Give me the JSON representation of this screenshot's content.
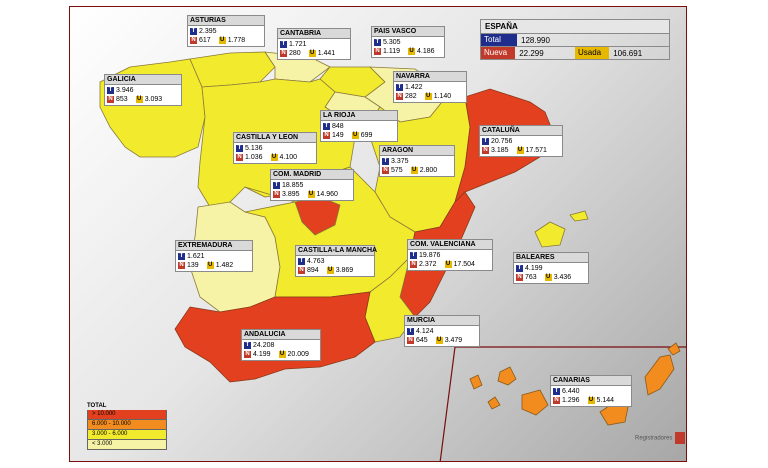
{
  "colors": {
    "over_10000": "#e3401f",
    "r6000_10000": "#f28c1e",
    "r3000_6000": "#f2ea2c",
    "under_3000": "#f7f3a6",
    "total_tag": "#1f2e8c",
    "nueva_tag": "#c0392b",
    "usada_tag": "#e6b800"
  },
  "tags": {
    "t": "T",
    "n": "N",
    "u": "U"
  },
  "espana": {
    "title": "ESPAÑA",
    "total_label": "Total",
    "total": "128.990",
    "nueva_label": "Nueva",
    "nueva": "22.299",
    "usada_label": "Usada",
    "usada": "106.691"
  },
  "regions": [
    {
      "name": "ASTURIAS",
      "t": "2.395",
      "n": "617",
      "u": "1.778"
    },
    {
      "name": "CANTABRIA",
      "t": "1.721",
      "n": "280",
      "u": "1.441"
    },
    {
      "name": "PAIS VASCO",
      "t": "5.305",
      "n": "1.119",
      "u": "4.186"
    },
    {
      "name": "GALICIA",
      "t": "3.946",
      "n": "853",
      "u": "3.093"
    },
    {
      "name": "NAVARRA",
      "t": "1.422",
      "n": "282",
      "u": "1.140"
    },
    {
      "name": "LA RIOJA",
      "t": "848",
      "n": "149",
      "u": "699"
    },
    {
      "name": "CASTILLA Y LEON",
      "t": "5.136",
      "n": "1.036",
      "u": "4.100"
    },
    {
      "name": "CATALUÑA",
      "t": "20.756",
      "n": "3.185",
      "u": "17.571"
    },
    {
      "name": "ARAGON",
      "t": "3.375",
      "n": "575",
      "u": "2.800"
    },
    {
      "name": "COM. MADRID",
      "t": "18.855",
      "n": "3.895",
      "u": "14.960"
    },
    {
      "name": "EXTREMADURA",
      "t": "1.621",
      "n": "139",
      "u": "1.482"
    },
    {
      "name": "CASTILLA-LA MANCHA",
      "t": "4.763",
      "n": "894",
      "u": "3.869"
    },
    {
      "name": "COM. VALENCIANA",
      "t": "19.876",
      "n": "2.372",
      "u": "17.504"
    },
    {
      "name": "BALEARES",
      "t": "4.199",
      "n": "763",
      "u": "3.436"
    },
    {
      "name": "ANDALUCIA",
      "t": "24.208",
      "n": "4.199",
      "u": "20.009"
    },
    {
      "name": "MURCIA",
      "t": "4.124",
      "n": "645",
      "u": "3.479"
    },
    {
      "name": "CANARIAS",
      "t": "6.440",
      "n": "1.296",
      "u": "5.144"
    }
  ],
  "legend": {
    "title": "TOTAL",
    "items": [
      "> 10.000",
      "6.000 - 10.000",
      "3.000 - 6.000",
      "< 3.000"
    ]
  },
  "logo": {
    "text": "Registradores"
  }
}
